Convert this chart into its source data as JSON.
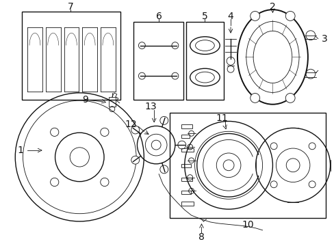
{
  "background_color": "#ffffff",
  "fig_width": 4.89,
  "fig_height": 3.6,
  "dpi": 100,
  "line_color": "#111111",
  "text_color": "#111111"
}
